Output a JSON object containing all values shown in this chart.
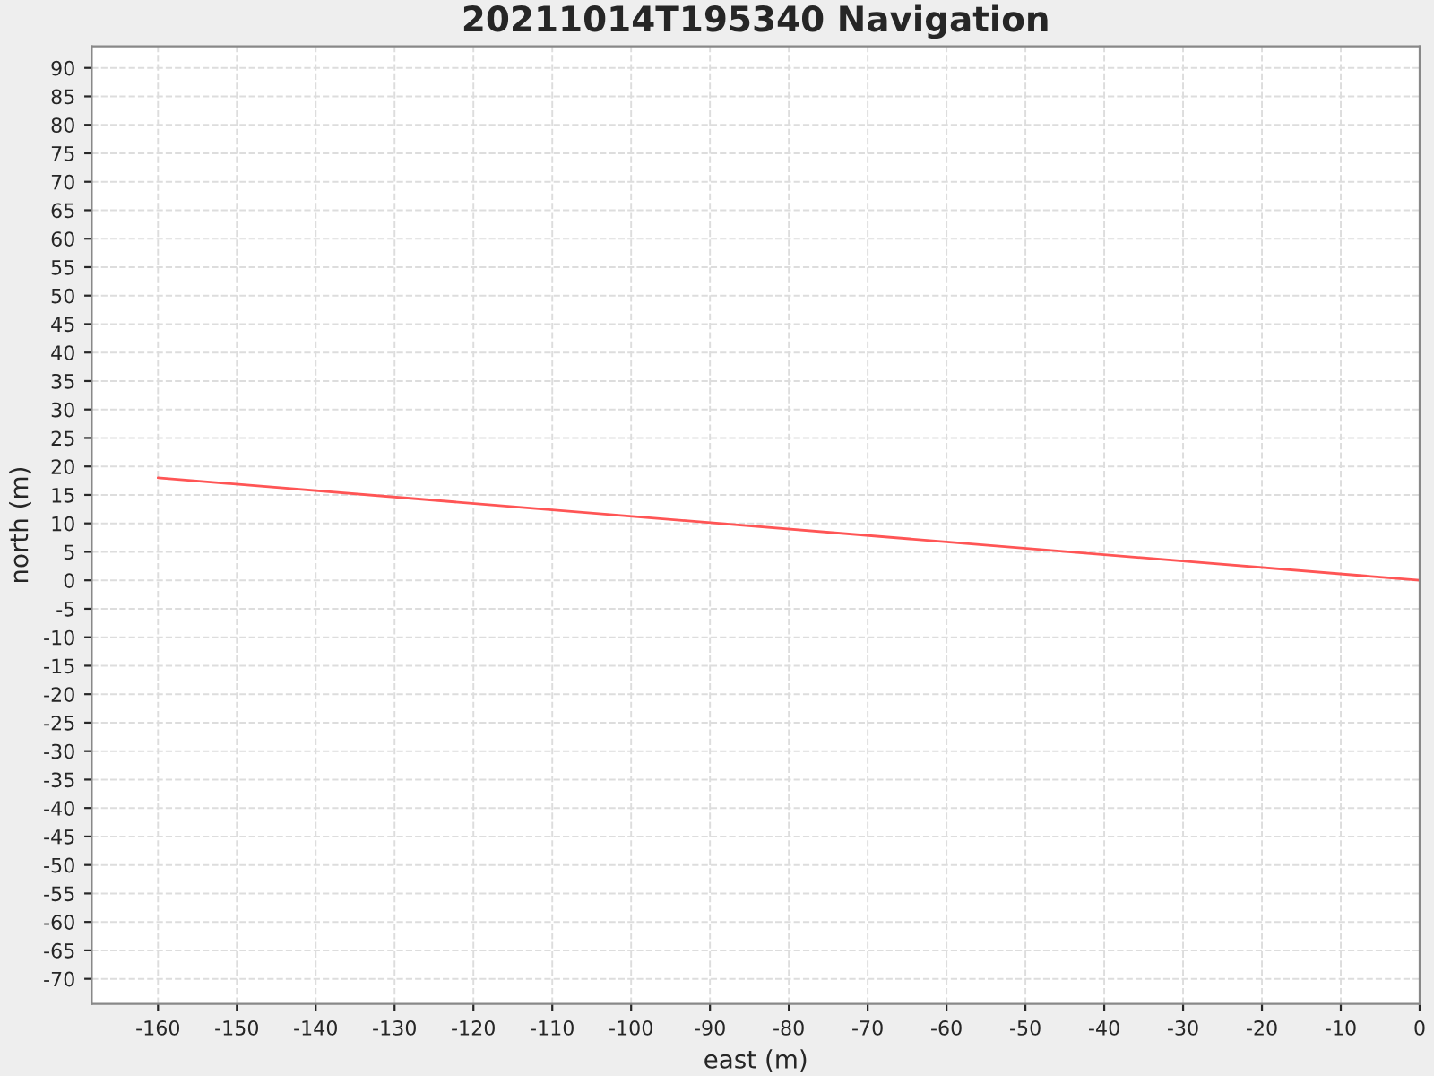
{
  "chart_data": {
    "type": "line",
    "title": "20211014T195340 Navigation",
    "xlabel": "east (m)",
    "ylabel": "north (m)",
    "series": [
      {
        "color": "#ff5555",
        "x": [
          -160,
          0
        ],
        "values": [
          18,
          0
        ]
      }
    ],
    "xlim": [
      -168.4,
      0
    ],
    "ylim": [
      -74.4,
      93.8
    ],
    "xticks": [
      -160,
      -150,
      -140,
      -130,
      -120,
      -110,
      -100,
      -90,
      -80,
      -70,
      -60,
      -50,
      -40,
      -30,
      -20,
      -10,
      0
    ],
    "yticks": [
      -70,
      -65,
      -60,
      -55,
      -50,
      -45,
      -40,
      -35,
      -30,
      -25,
      -20,
      -15,
      -10,
      -5,
      0,
      5,
      10,
      15,
      20,
      25,
      30,
      35,
      40,
      45,
      50,
      55,
      60,
      65,
      70,
      75,
      80,
      85,
      90
    ],
    "grid": true,
    "legend": false,
    "marker": "none",
    "line_style": "solid"
  }
}
